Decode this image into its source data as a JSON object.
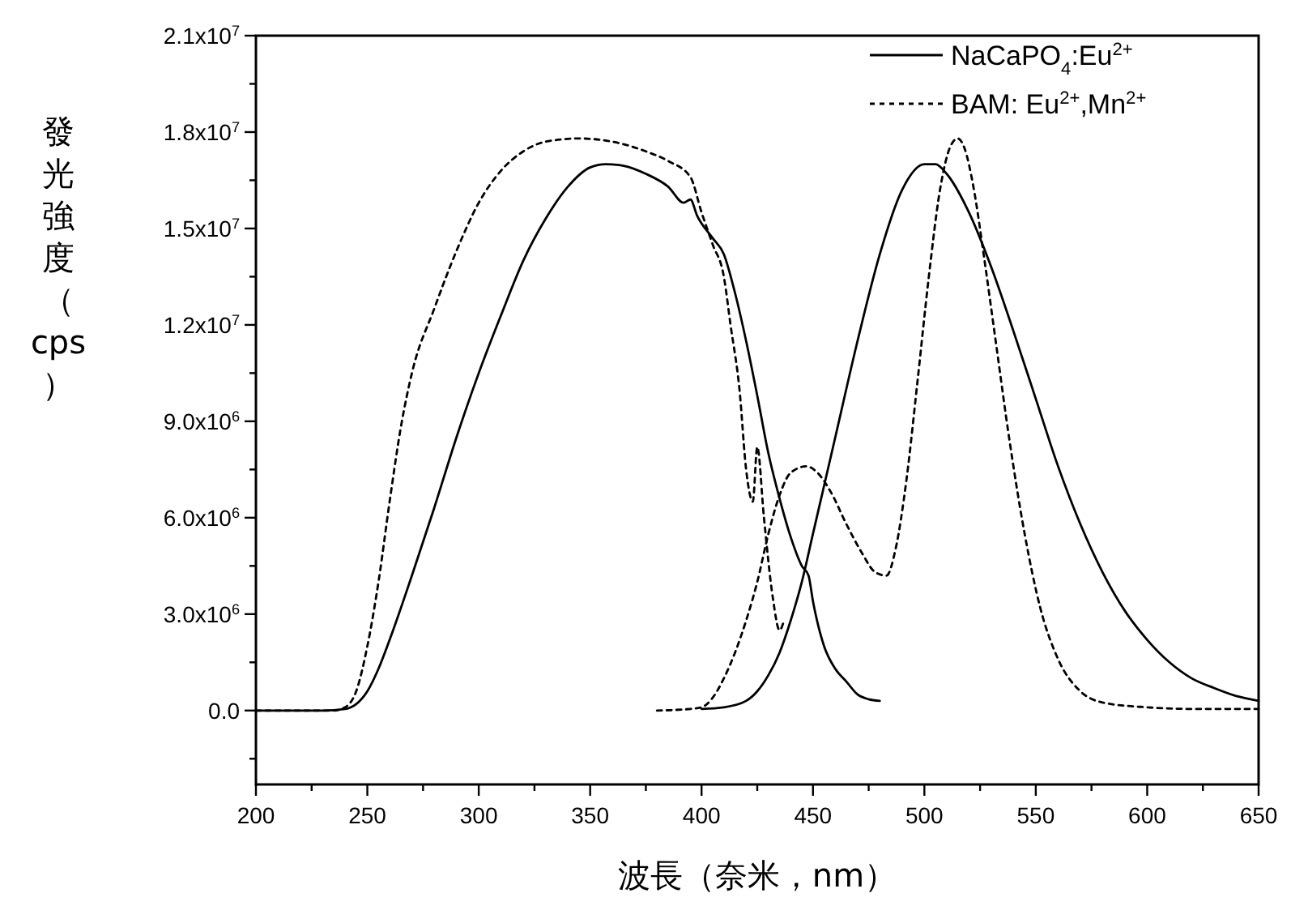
{
  "chart_data": {
    "type": "line",
    "xlabel": "波長（奈米，nm）",
    "ylabel": "發光強度（cps）",
    "xlim": [
      200,
      650
    ],
    "xticks": [
      200,
      {
        "value": 225,
        "label": null
      },
      250,
      {
        "value": 275,
        "label": null
      },
      300,
      {
        "value": 325,
        "label": null
      },
      350,
      {
        "value": 375,
        "label": null
      },
      400,
      {
        "value": 425,
        "label": null
      },
      450,
      {
        "value": 475,
        "label": null
      },
      500,
      {
        "value": 525,
        "label": null
      },
      550,
      {
        "value": 575,
        "label": null
      },
      600,
      {
        "value": 625,
        "label": null
      },
      650
    ],
    "ylim": [
      -2300000.0,
      21000000.0
    ],
    "yticks": [
      {
        "value": -1500000.0,
        "label": null
      },
      {
        "value": 0,
        "label": "0.0"
      },
      {
        "value": 1500000.0,
        "label": null
      },
      {
        "value": 3000000.0,
        "label": "3.0x10$^{6}$"
      },
      {
        "value": 4500000.0,
        "label": null
      },
      {
        "value": 6000000.0,
        "label": "6.0x10$^{6}$"
      },
      {
        "value": 7500000.0,
        "label": null
      },
      {
        "value": 9000000.0,
        "label": "9.0x10$^{6}$"
      },
      {
        "value": 10500000.0,
        "label": null
      },
      {
        "value": 12000000.0,
        "label": "1.2x10$^{7}$"
      },
      {
        "value": 13500000.0,
        "label": null
      },
      {
        "value": 15000000.0,
        "label": "1.5x10$^{7}$"
      },
      {
        "value": 16500000.0,
        "label": null
      },
      {
        "value": 18000000.0,
        "label": "1.8x10$^{7}$"
      },
      {
        "value": 19500000.0,
        "label": null
      },
      {
        "value": 21000000.0,
        "label": "2.1x10$^{7}$"
      }
    ],
    "grid": false,
    "legend": "top right",
    "series": [
      {
        "name": "NaCaPO$_{4}$:Eu$^{2+}$",
        "color": "#000000",
        "line_style": "solid",
        "x": [
          200,
          230,
          240,
          245,
          250,
          255,
          260,
          270,
          280,
          290,
          300,
          310,
          320,
          330,
          340,
          350,
          357,
          365,
          375,
          385,
          392,
          395,
          398,
          405,
          410,
          415,
          420,
          425,
          430,
          435,
          440,
          445,
          448,
          450,
          455,
          460,
          465,
          470,
          475,
          480
        ],
        "values": [
          0,
          0,
          50000.0,
          200000.0,
          600000.0,
          1300000.0,
          2200000.0,
          4200000.0,
          6300000.0,
          8500000.0,
          10500000.0,
          12300000.0,
          14000000.0,
          15300000.0,
          16300000.0,
          16900000.0,
          17000000.0,
          16950000.0,
          16700000.0,
          16300000.0,
          15800000.0,
          15900000.0,
          15400000.0,
          14700000.0,
          14200000.0,
          13000000.0,
          11500000.0,
          9800000.0,
          8000000.0,
          6600000.0,
          5400000.0,
          4500000.0,
          4200000.0,
          3400000.0,
          2000000.0,
          1300000.0,
          900000.0,
          500000.0,
          350000.0,
          300000.0
        ]
      },
      {
        "name": "BAM: Eu$^{2+}$,Mn$^{2+}$",
        "color": "#000000",
        "line_style": "dotted",
        "x": [
          200,
          235,
          240,
          245,
          250,
          255,
          260,
          265,
          270,
          280,
          290,
          300,
          310,
          320,
          330,
          345,
          360,
          375,
          385,
          395,
          400,
          405,
          410,
          413,
          417,
          420,
          423,
          425,
          428,
          432,
          435,
          437
        ],
        "values": [
          0,
          0,
          100000.0,
          600000.0,
          2000000.0,
          4000000.0,
          6500000.0,
          8800000.0,
          10500000.0,
          12500000.0,
          14300000.0,
          15800000.0,
          16800000.0,
          17400000.0,
          17700000.0,
          17800000.0,
          17700000.0,
          17400000.0,
          17100000.0,
          16600000.0,
          15500000.0,
          14500000.0,
          13500000.0,
          12000000.0,
          10000000.0,
          7500000.0,
          6500000.0,
          8200000.0,
          6000000.0,
          3500000.0,
          2500000.0,
          2800000.0
        ]
      },
      {
        "color": "#000000",
        "line_style": "solid",
        "x": [
          400,
          410,
          420,
          425,
          430,
          435,
          440,
          445,
          450,
          460,
          470,
          480,
          490,
          500,
          505,
          510,
          520,
          530,
          540,
          550,
          560,
          570,
          580,
          590,
          600,
          610,
          620,
          630,
          640,
          650
        ],
        "values": [
          50000.0,
          100000.0,
          300000.0,
          600000.0,
          1100000.0,
          1800000.0,
          2800000.0,
          4000000.0,
          5500000.0,
          8500000.0,
          11500000.0,
          14200000.0,
          16200000.0,
          17000000.0,
          17000000.0,
          16700000.0,
          15500000.0,
          13800000.0,
          11800000.0,
          9700000.0,
          7600000.0,
          5800000.0,
          4300000.0,
          3100000.0,
          2200000.0,
          1500000.0,
          1000000.0,
          700000.0,
          450000.0,
          300000.0
        ]
      },
      {
        "color": "#000000",
        "line_style": "dotted",
        "x": [
          380,
          395,
          400,
          405,
          410,
          415,
          420,
          425,
          430,
          435,
          440,
          447,
          452,
          458,
          465,
          472,
          478,
          483,
          487,
          492,
          497,
          502,
          507,
          512,
          515,
          518,
          522,
          527,
          532,
          538,
          545,
          552,
          560,
          570,
          580,
          600,
          620,
          650
        ],
        "values": [
          0,
          50000.0,
          100000.0,
          400000.0,
          1000000.0,
          1800000.0,
          2800000.0,
          4000000.0,
          5500000.0,
          6700000.0,
          7400000.0,
          7600000.0,
          7400000.0,
          6800000.0,
          5800000.0,
          4900000.0,
          4300000.0,
          4200000.0,
          5000000.0,
          7200000.0,
          10300000.0,
          13500000.0,
          16200000.0,
          17600000.0,
          17800000.0,
          17500000.0,
          16300000.0,
          14000000.0,
          11500000.0,
          8500000.0,
          5500000.0,
          3200000.0,
          1600000.0,
          600000.0,
          250000.0,
          100000.0,
          50000.0,
          50000.0
        ]
      }
    ]
  }
}
